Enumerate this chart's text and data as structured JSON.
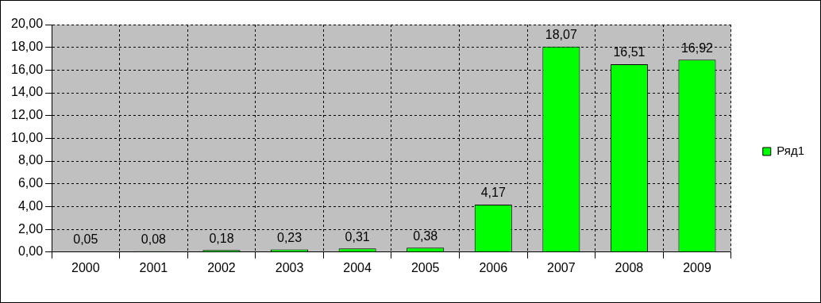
{
  "chart_data": {
    "type": "bar",
    "categories": [
      "2000",
      "2001",
      "2002",
      "2003",
      "2004",
      "2005",
      "2006",
      "2007",
      "2008",
      "2009"
    ],
    "series": [
      {
        "name": "Ряд1",
        "color": "#00ff00",
        "values": [
          0.05,
          0.08,
          0.18,
          0.23,
          0.31,
          0.38,
          4.17,
          18.07,
          16.51,
          16.92
        ],
        "value_labels": [
          "0,05",
          "0,08",
          "0,18",
          "0,23",
          "0,31",
          "0,38",
          "4,17",
          "18,07",
          "16,51",
          "16,92"
        ]
      }
    ],
    "ylim": [
      0,
      20
    ],
    "yticks": [
      {
        "value": 0,
        "label": "0,00"
      },
      {
        "value": 2,
        "label": "2,00"
      },
      {
        "value": 4,
        "label": "4,00"
      },
      {
        "value": 6,
        "label": "6,00"
      },
      {
        "value": 8,
        "label": "8,00"
      },
      {
        "value": 10,
        "label": "10,00"
      },
      {
        "value": 12,
        "label": "12,00"
      },
      {
        "value": 14,
        "label": "14,00"
      },
      {
        "value": 16,
        "label": "16,00"
      },
      {
        "value": 18,
        "label": "18,00"
      },
      {
        "value": 20,
        "label": "20,00"
      }
    ],
    "grid": true,
    "legend": "right"
  }
}
